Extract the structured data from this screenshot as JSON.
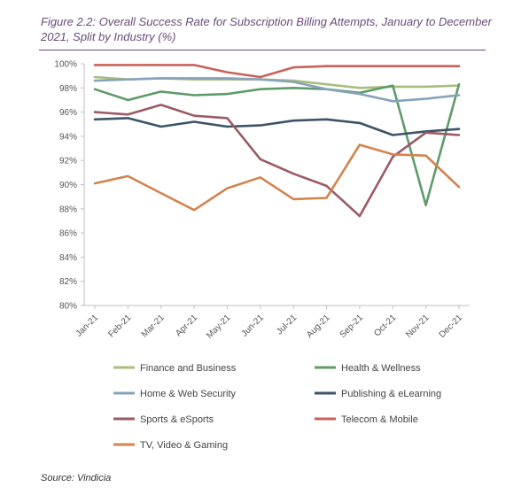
{
  "figure_title": "Figure 2.2: Overall Success Rate for Subscription Billing Attempts, January to December 2021, Split by Industry (%)",
  "source": "Source: Vindicia",
  "chart_data": {
    "type": "line",
    "title": "Figure 2.2: Overall Success Rate for Subscription Billing Attempts, January to December 2021, Split by Industry (%)",
    "xlabel": "",
    "ylabel": "",
    "categories": [
      "Jan-21",
      "Feb-21",
      "Mar-21",
      "Apr-21",
      "May-21",
      "Jun-21",
      "Jul-21",
      "Aug-21",
      "Sep-21",
      "Oct-21",
      "Nov-21",
      "Dec-21"
    ],
    "ylim": [
      80,
      100
    ],
    "yticks": [
      "100%",
      "98%",
      "96%",
      "94%",
      "92%",
      "90%",
      "88%",
      "86%",
      "84%",
      "82%",
      "80%"
    ],
    "grid": false,
    "legend_position": "bottom",
    "series": [
      {
        "name": "Finance and Business",
        "color": "#a9bd7d",
        "values": [
          98.9,
          98.7,
          98.8,
          98.7,
          98.7,
          98.7,
          98.6,
          98.3,
          98.0,
          98.1,
          98.1,
          98.2
        ]
      },
      {
        "name": "Health & Wellness",
        "color": "#5f9a6a",
        "values": [
          97.9,
          97.0,
          97.7,
          97.4,
          97.5,
          97.9,
          98.0,
          97.9,
          97.6,
          98.2,
          88.3,
          98.3
        ]
      },
      {
        "name": "Home & Web Security",
        "color": "#87a3bb",
        "values": [
          98.6,
          98.7,
          98.8,
          98.8,
          98.8,
          98.7,
          98.5,
          97.9,
          97.5,
          96.9,
          97.1,
          97.4
        ]
      },
      {
        "name": "Publishing & eLearning",
        "color": "#3e5268",
        "values": [
          95.4,
          95.5,
          94.8,
          95.2,
          94.8,
          94.9,
          95.3,
          95.4,
          95.1,
          94.1,
          94.4,
          94.6
        ]
      },
      {
        "name": "Sports & eSports",
        "color": "#9c5a66",
        "values": [
          96.0,
          95.8,
          96.6,
          95.7,
          95.5,
          92.1,
          90.9,
          89.9,
          87.4,
          92.3,
          94.3,
          94.1
        ]
      },
      {
        "name": "Telecom & Mobile",
        "color": "#c8625a",
        "values": [
          99.9,
          99.9,
          99.9,
          99.9,
          99.3,
          98.9,
          99.7,
          99.8,
          99.8,
          99.8,
          99.8,
          99.8
        ]
      },
      {
        "name": "TV, Video & Gaming",
        "color": "#d2844e",
        "values": [
          90.1,
          90.7,
          89.3,
          87.9,
          89.7,
          90.6,
          88.8,
          88.9,
          93.3,
          92.5,
          92.4,
          89.8
        ]
      }
    ]
  }
}
